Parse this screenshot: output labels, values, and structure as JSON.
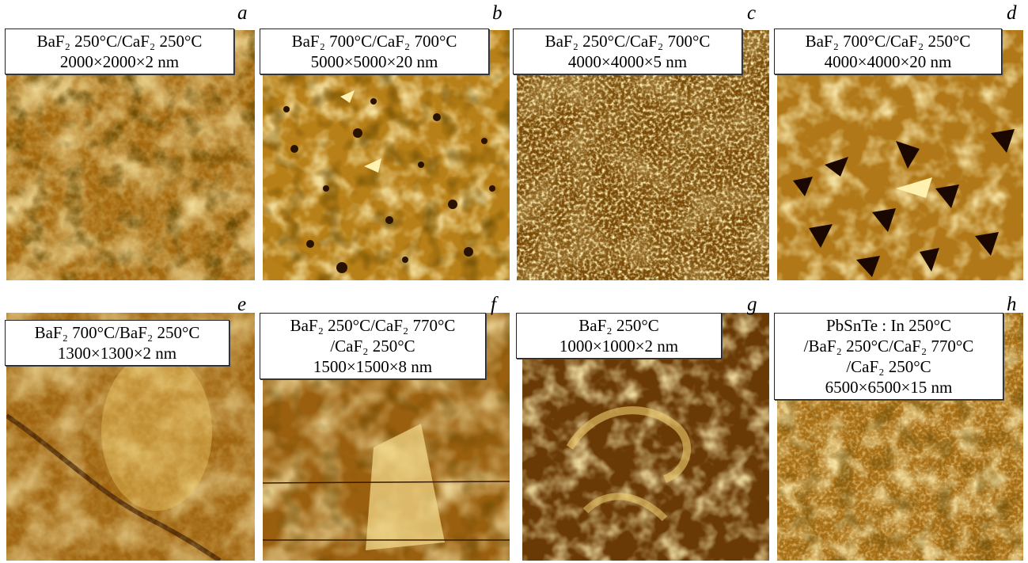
{
  "panels": [
    {
      "letter": "a",
      "lines": [
        "BaF₂ 250°C/CaF₂ 250°C",
        "2000×2000×2 nm"
      ]
    },
    {
      "letter": "b",
      "lines": [
        "BaF₂ 700°C/CaF₂ 700°C",
        "5000×5000×20 nm"
      ]
    },
    {
      "letter": "c",
      "lines": [
        "BaF₂ 250°C/CaF₂ 700°C",
        "4000×4000×5 nm"
      ]
    },
    {
      "letter": "d",
      "lines": [
        "BaF₂ 700°C/CaF₂ 250°C",
        "4000×4000×20 nm"
      ]
    },
    {
      "letter": "e",
      "lines": [
        "BaF₂ 700°C/BaF₂ 250°C",
        "1300×1300×2 nm"
      ]
    },
    {
      "letter": "f",
      "lines": [
        "BaF₂ 250°C/CaF₂ 770°C",
        "/CaF₂ 250°C",
        "1500×1500×8 nm"
      ]
    },
    {
      "letter": "g",
      "lines": [
        "BaF₂ 250°C",
        "1000×1000×2 nm"
      ]
    },
    {
      "letter": "h",
      "lines": [
        "PbSnTe : In 250°C",
        "/BaF₂ 250°C/CaF₂ 770°C",
        "/CaF₂ 250°C",
        "6500×6500×15 nm"
      ]
    }
  ],
  "colors": {
    "dark": "#3a1e00",
    "mid": "#b07a10",
    "light": "#f2d878"
  }
}
